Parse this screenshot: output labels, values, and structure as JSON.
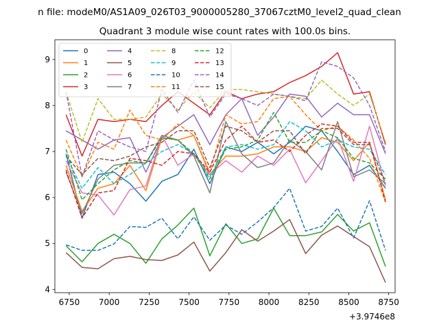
{
  "chart_data": {
    "type": "line",
    "suptitle": "n file: modeM0/AS1A09_026T03_9000005280_37067cztM0_level2_quad_clean",
    "title": "Quadrant 3 module wise count rates with 100.0s bins.",
    "xlabel": "",
    "ylabel": "",
    "x_offset_label": "+3.9746e8",
    "xlim": [
      6660,
      8790
    ],
    "ylim": [
      3.93,
      9.43
    ],
    "xticks": [
      6750,
      7000,
      7250,
      7500,
      7750,
      8000,
      8250,
      8500,
      8750
    ],
    "yticks": [
      4,
      5,
      6,
      7,
      8,
      9
    ],
    "legend_loc": "upper-left",
    "legend_ncol": 4,
    "x": [
      6730,
      6830,
      6930,
      7030,
      7130,
      7230,
      7330,
      7430,
      7530,
      7630,
      7730,
      7830,
      7930,
      8030,
      8130,
      8230,
      8330,
      8430,
      8530,
      8630,
      8730
    ],
    "series": [
      {
        "name": "0",
        "color": "#1f77b4",
        "dash": "solid",
        "values": [
          6.95,
          5.55,
          6.5,
          6.55,
          6.3,
          5.92,
          6.35,
          6.5,
          7.05,
          6.3,
          7.1,
          7.0,
          7.2,
          6.95,
          7.2,
          7.55,
          7.45,
          7.0,
          6.5,
          6.7,
          6.2
        ]
      },
      {
        "name": "1",
        "color": "#ff7f0e",
        "dash": "solid",
        "values": [
          6.7,
          5.7,
          6.2,
          6.3,
          6.7,
          6.15,
          7.3,
          7.25,
          7.35,
          6.5,
          6.9,
          6.9,
          6.95,
          7.1,
          7.1,
          7.0,
          7.3,
          7.2,
          6.8,
          7.2,
          5.95
        ]
      },
      {
        "name": "2",
        "color": "#2ca02c",
        "dash": "solid",
        "values": [
          4.95,
          4.6,
          5.0,
          5.2,
          5.0,
          4.57,
          5.1,
          5.4,
          5.77,
          4.73,
          5.43,
          5.0,
          5.1,
          5.77,
          5.17,
          5.17,
          5.25,
          5.63,
          5.27,
          5.45,
          4.5
        ]
      },
      {
        "name": "3",
        "color": "#d62728",
        "dash": "solid",
        "values": [
          7.8,
          6.9,
          7.7,
          7.65,
          7.7,
          7.65,
          8.0,
          8.3,
          8.05,
          7.8,
          8.3,
          8.15,
          8.25,
          8.3,
          8.5,
          8.65,
          8.85,
          9.15,
          8.25,
          8.3,
          7.15
        ]
      },
      {
        "name": "4",
        "color": "#9467bd",
        "dash": "solid",
        "values": [
          7.45,
          7.25,
          7.05,
          7.25,
          7.3,
          6.55,
          7.3,
          7.55,
          7.8,
          7.15,
          7.8,
          8.15,
          7.35,
          7.75,
          8.25,
          8.2,
          7.75,
          8.05,
          7.8,
          7.8,
          6.95
        ]
      },
      {
        "name": "5",
        "color": "#8c564b",
        "dash": "solid",
        "values": [
          4.8,
          4.48,
          4.45,
          4.67,
          4.72,
          4.65,
          4.63,
          4.75,
          5.03,
          4.4,
          4.8,
          5.3,
          5.05,
          5.27,
          5.52,
          4.78,
          5.18,
          5.38,
          5.15,
          4.93,
          4.15
        ]
      },
      {
        "name": "6",
        "color": "#e377c2",
        "dash": "solid",
        "values": [
          6.8,
          6.1,
          6.05,
          5.62,
          6.17,
          6.25,
          7.35,
          6.7,
          6.95,
          6.5,
          6.8,
          6.55,
          6.9,
          6.7,
          7.05,
          6.32,
          6.8,
          7.3,
          6.35,
          7.55,
          6.25
        ]
      },
      {
        "name": "7",
        "color": "#7f7f7f",
        "dash": "solid",
        "values": [
          6.55,
          5.65,
          6.4,
          6.7,
          6.75,
          6.75,
          7.35,
          7.25,
          6.9,
          6.1,
          7.65,
          6.95,
          6.65,
          6.75,
          7.25,
          7.0,
          6.6,
          7.65,
          6.45,
          6.6,
          6.3
        ]
      },
      {
        "name": "8",
        "color": "#bcbd22",
        "dash": "dashed",
        "values": [
          8.3,
          7.2,
          8.15,
          7.7,
          7.7,
          7.75,
          8.25,
          7.9,
          8.3,
          7.95,
          8.35,
          8.35,
          8.3,
          8.25,
          8.2,
          8.15,
          8.55,
          8.25,
          8.0,
          8.25,
          7.2
        ]
      },
      {
        "name": "9",
        "color": "#17becf",
        "dash": "dashed",
        "values": [
          6.9,
          6.2,
          6.65,
          6.3,
          6.5,
          6.75,
          7.0,
          7.15,
          6.95,
          6.45,
          7.1,
          7.15,
          7.05,
          7.15,
          7.65,
          7.45,
          7.1,
          7.25,
          7.1,
          7.05,
          6.5
        ]
      },
      {
        "name": "10",
        "color": "#1f77b4",
        "dash": "dashed",
        "values": [
          4.97,
          4.85,
          4.85,
          4.99,
          5.37,
          5.35,
          5.55,
          5.1,
          5.58,
          5.07,
          5.4,
          5.2,
          5.47,
          5.78,
          6.2,
          5.27,
          5.37,
          5.77,
          5.12,
          5.93,
          4.85
        ]
      },
      {
        "name": "11",
        "color": "#ff7f0e",
        "dash": "dashed",
        "values": [
          7.25,
          6.45,
          7.2,
          7.05,
          7.9,
          7.35,
          7.25,
          7.6,
          7.35,
          6.55,
          7.8,
          7.6,
          7.65,
          8.15,
          8.2,
          7.8,
          7.45,
          7.55,
          7.25,
          6.85,
          5.9
        ]
      },
      {
        "name": "12",
        "color": "#2ca02c",
        "dash": "dashed",
        "values": [
          7.05,
          5.95,
          6.3,
          6.6,
          6.8,
          6.75,
          7.3,
          7.25,
          6.95,
          6.4,
          7.05,
          7.1,
          7.25,
          7.85,
          7.2,
          7.2,
          7.45,
          7.3,
          6.85,
          6.75,
          6.4
        ]
      },
      {
        "name": "13",
        "color": "#d62728",
        "dash": "dashed",
        "values": [
          6.6,
          5.55,
          6.1,
          6.15,
          6.85,
          6.8,
          6.7,
          7.0,
          6.95,
          6.55,
          7.25,
          7.55,
          7.2,
          7.25,
          7.0,
          7.35,
          7.6,
          7.55,
          7.2,
          7.2,
          5.9
        ]
      },
      {
        "name": "14",
        "color": "#9467bd",
        "dash": "dashed",
        "values": [
          8.3,
          6.45,
          7.45,
          7.25,
          7.1,
          7.0,
          8.35,
          7.85,
          8.55,
          7.75,
          8.25,
          8.15,
          8.0,
          8.25,
          8.2,
          8.1,
          8.95,
          8.85,
          8.6,
          8.0,
          7.0
        ]
      },
      {
        "name": "15",
        "color": "#8c564b",
        "dash": "dashed",
        "values": [
          6.9,
          6.5,
          6.85,
          6.8,
          6.9,
          7.1,
          7.2,
          7.45,
          7.45,
          6.65,
          7.55,
          7.45,
          7.2,
          7.45,
          7.45,
          6.95,
          7.5,
          7.5,
          7.15,
          7.15,
          6.3
        ]
      }
    ]
  }
}
